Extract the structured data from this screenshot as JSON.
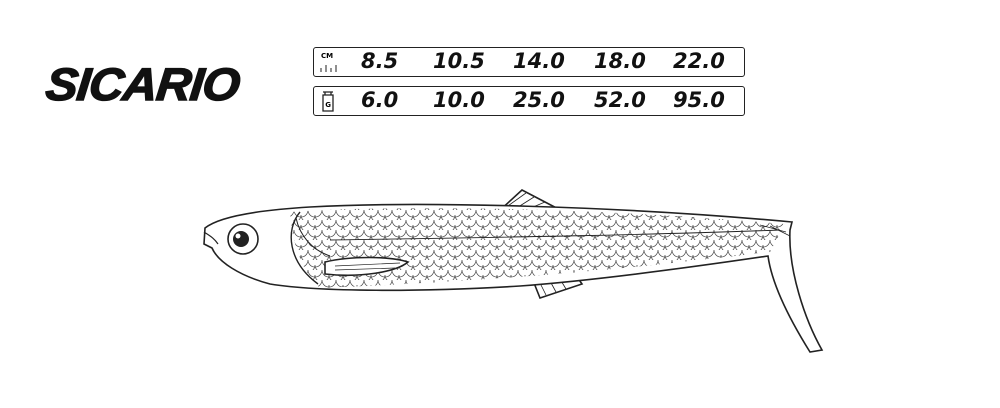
{
  "brand": {
    "name": "SICARIO"
  },
  "size_table": {
    "length": {
      "unit": "CM",
      "icon": "ruler-icon",
      "values": [
        "8.5",
        "10.5",
        "14.0",
        "18.0",
        "22.0"
      ]
    },
    "weight": {
      "unit": "G",
      "icon": "weight-icon",
      "values": [
        "6.0",
        "10.0",
        "25.0",
        "52.0",
        "95.0"
      ]
    }
  },
  "illustration": {
    "subject": "swimbait-fish-icon",
    "stroke_color": "#222222"
  }
}
